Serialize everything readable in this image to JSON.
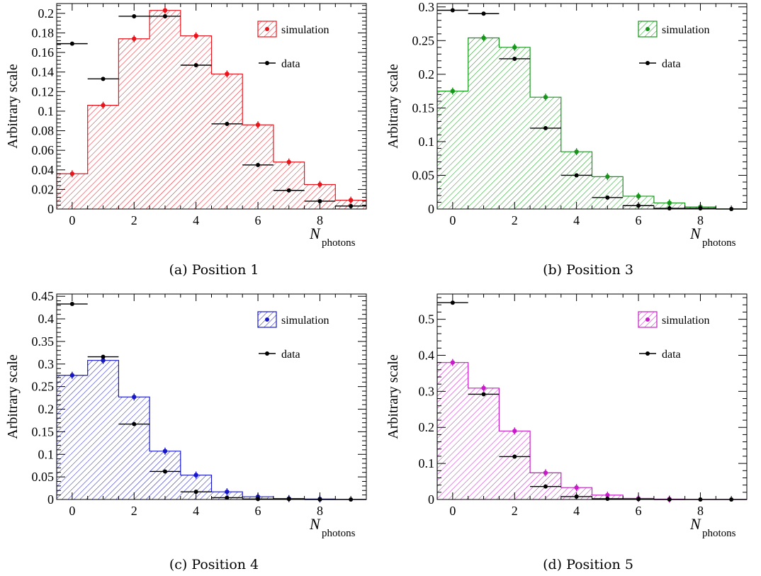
{
  "chart_data": [
    {
      "type": "bar",
      "caption": "(a) Position 1",
      "ylabel": "Arbitrary scale",
      "xlabel_main": "N",
      "xlabel_sub": "photons",
      "xlim": [
        -0.5,
        9.5
      ],
      "ylim": [
        0,
        0.21
      ],
      "xticks": [
        0,
        2,
        4,
        6,
        8
      ],
      "yticks": [
        0,
        0.02,
        0.04,
        0.06,
        0.08,
        0.1,
        0.12,
        0.14,
        0.16,
        0.18,
        0.2
      ],
      "ytick_labels": [
        "0",
        "0.02",
        "0.04",
        "0.06",
        "0.08",
        "0.1",
        "0.12",
        "0.14",
        "0.16",
        "0.18",
        "0.2"
      ],
      "color": "#e8141c",
      "legend": [
        "simulation",
        "data"
      ],
      "legend_position": "top-right",
      "simulation": {
        "x": [
          0,
          1,
          2,
          3,
          4,
          5,
          6,
          7,
          8,
          9
        ],
        "values": [
          0.036,
          0.106,
          0.174,
          0.203,
          0.177,
          0.138,
          0.086,
          0.048,
          0.025,
          0.009
        ]
      },
      "data": {
        "x": [
          0,
          1,
          2,
          3,
          4,
          5,
          6,
          7,
          8,
          9
        ],
        "values": [
          0.169,
          0.133,
          0.197,
          0.197,
          0.147,
          0.087,
          0.045,
          0.019,
          0.008,
          0.003
        ]
      }
    },
    {
      "type": "bar",
      "caption": "(b) Position 3",
      "ylabel": "Arbitrary scale",
      "xlabel_main": "N",
      "xlabel_sub": "photons",
      "xlim": [
        -0.5,
        9.5
      ],
      "ylim": [
        0,
        0.305
      ],
      "xticks": [
        0,
        2,
        4,
        6,
        8
      ],
      "yticks": [
        0,
        0.05,
        0.1,
        0.15,
        0.2,
        0.25,
        0.3
      ],
      "ytick_labels": [
        "0",
        "0.05",
        "0.1",
        "0.15",
        "0.2",
        "0.25",
        "0.3"
      ],
      "color": "#17951b",
      "legend": [
        "simulation",
        "data"
      ],
      "legend_position": "top-right",
      "simulation": {
        "x": [
          0,
          1,
          2,
          3,
          4,
          5,
          6,
          7,
          8,
          9
        ],
        "values": [
          0.175,
          0.254,
          0.24,
          0.166,
          0.085,
          0.048,
          0.019,
          0.009,
          0.003,
          0
        ]
      },
      "data": {
        "x": [
          0,
          1,
          2,
          3,
          4,
          5,
          6,
          7,
          8,
          9
        ],
        "values": [
          0.295,
          0.29,
          0.223,
          0.12,
          0.05,
          0.017,
          0.005,
          0.001,
          0.001,
          0
        ]
      }
    },
    {
      "type": "bar",
      "caption": "(c) Position 4",
      "ylabel": "Arbitrary scale",
      "xlabel_main": "N",
      "xlabel_sub": "photons",
      "xlim": [
        -0.5,
        9.5
      ],
      "ylim": [
        0,
        0.455
      ],
      "xticks": [
        0,
        2,
        4,
        6,
        8
      ],
      "yticks": [
        0,
        0.05,
        0.1,
        0.15,
        0.2,
        0.25,
        0.3,
        0.35,
        0.4,
        0.45
      ],
      "ytick_labels": [
        "0",
        "0.05",
        "0.1",
        "0.15",
        "0.2",
        "0.25",
        "0.3",
        "0.35",
        "0.4",
        "0.45"
      ],
      "color": "#1717c8",
      "legend": [
        "simulation",
        "data"
      ],
      "legend_position": "top-right",
      "simulation": {
        "x": [
          0,
          1,
          2,
          3,
          4,
          5,
          6,
          7,
          8,
          9
        ],
        "values": [
          0.275,
          0.308,
          0.227,
          0.107,
          0.054,
          0.017,
          0.006,
          0.002,
          0.001,
          0
        ]
      },
      "data": {
        "x": [
          0,
          1,
          2,
          3,
          4,
          5,
          6,
          7,
          8,
          9
        ],
        "values": [
          0.433,
          0.316,
          0.167,
          0.062,
          0.017,
          0.004,
          0.001,
          0.001,
          0,
          0
        ]
      }
    },
    {
      "type": "bar",
      "caption": "(d) Position 5",
      "ylabel": "Arbitrary scale",
      "xlabel_main": "N",
      "xlabel_sub": "photons",
      "xlim": [
        -0.5,
        9.5
      ],
      "ylim": [
        0,
        0.57
      ],
      "xticks": [
        0,
        2,
        4,
        6,
        8
      ],
      "yticks": [
        0,
        0.1,
        0.2,
        0.3,
        0.4,
        0.5
      ],
      "ytick_labels": [
        "0",
        "0.1",
        "0.2",
        "0.3",
        "0.4",
        "0.5"
      ],
      "color": "#c81bc8",
      "legend": [
        "simulation",
        "data"
      ],
      "legend_position": "top-right",
      "simulation": {
        "x": [
          0,
          1,
          2,
          3,
          4,
          5,
          6,
          7,
          8,
          9
        ],
        "values": [
          0.38,
          0.309,
          0.19,
          0.074,
          0.033,
          0.012,
          0.003,
          0.001,
          0,
          0
        ]
      },
      "data": {
        "x": [
          0,
          1,
          2,
          3,
          4,
          5,
          6,
          7,
          8,
          9
        ],
        "values": [
          0.546,
          0.292,
          0.119,
          0.036,
          0.008,
          0.002,
          0.001,
          0,
          0,
          0
        ]
      }
    }
  ]
}
